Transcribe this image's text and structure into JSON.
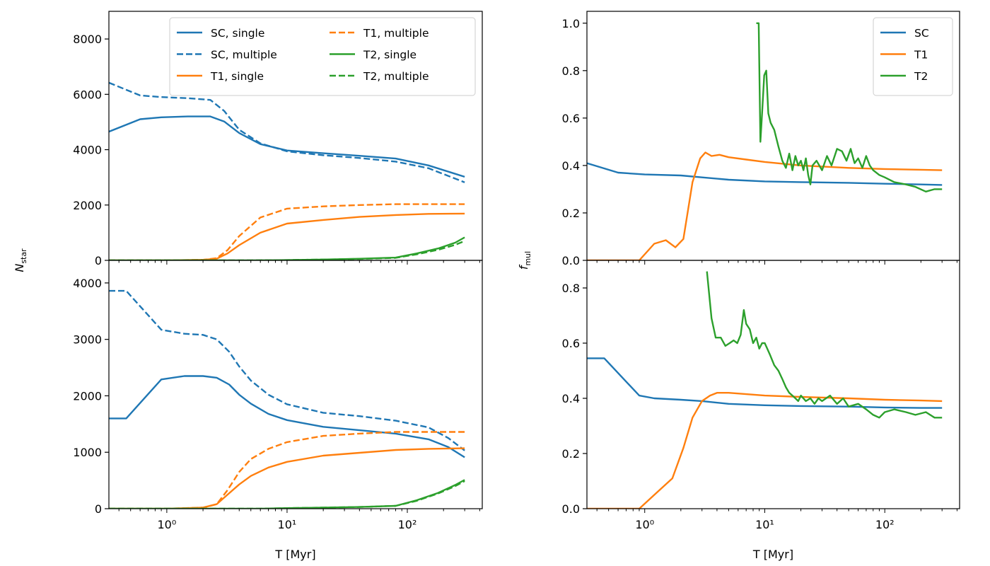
{
  "colors": {
    "SC": "#1f77b4",
    "T1": "#ff7f0e",
    "T2": "#2ca02c",
    "axis": "#000000",
    "legend_border": "#cccccc"
  },
  "ylabels": {
    "left_main": "N",
    "left_sub": "star",
    "right_main": "f",
    "right_sub": "mul"
  },
  "chart_data": [
    {
      "id": "nstar-top",
      "type": "line",
      "xscale": "log",
      "xlim": [
        0.33,
        420
      ],
      "ylim": [
        0,
        9000
      ],
      "yticks": [
        0,
        2000,
        4000,
        6000,
        8000
      ],
      "yticklabels": [
        "0",
        "2000",
        "4000",
        "6000",
        "8000"
      ],
      "xticks": [],
      "xticklabels": [],
      "xlabel": "",
      "legend": {
        "position": "upper-right",
        "columns": 2
      },
      "series": [
        {
          "name": "SC, single",
          "color": "SC",
          "dash": false,
          "x": [
            0.33,
            0.6,
            0.9,
            1.5,
            2.3,
            3.0,
            4.0,
            6.0,
            10,
            20,
            40,
            80,
            150,
            300
          ],
          "y": [
            4650,
            5100,
            5170,
            5200,
            5200,
            5020,
            4600,
            4200,
            3970,
            3870,
            3780,
            3680,
            3430,
            3020
          ]
        },
        {
          "name": "SC, multiple",
          "color": "SC",
          "dash": true,
          "x": [
            0.33,
            0.6,
            0.9,
            1.5,
            2.3,
            3.0,
            4.0,
            6.0,
            10,
            20,
            40,
            80,
            150,
            300
          ],
          "y": [
            6420,
            5960,
            5900,
            5860,
            5800,
            5400,
            4720,
            4230,
            3940,
            3800,
            3700,
            3570,
            3330,
            2820
          ]
        },
        {
          "name": "T1, single",
          "color": "T1",
          "dash": false,
          "x": [
            0.33,
            1.0,
            2.0,
            2.6,
            3.2,
            4.0,
            6.0,
            10,
            20,
            40,
            80,
            150,
            300
          ],
          "y": [
            0,
            0,
            20,
            60,
            250,
            550,
            1000,
            1330,
            1460,
            1570,
            1640,
            1680,
            1690
          ]
        },
        {
          "name": "T1, multiple",
          "color": "T1",
          "dash": true,
          "x": [
            0.33,
            1.0,
            2.0,
            2.6,
            3.2,
            4.0,
            6.0,
            10,
            20,
            40,
            80,
            150,
            300
          ],
          "y": [
            0,
            0,
            20,
            80,
            370,
            880,
            1550,
            1870,
            1950,
            2000,
            2030,
            2030,
            2030
          ]
        },
        {
          "name": "T2, single",
          "color": "T2",
          "dash": false,
          "x": [
            0.33,
            5,
            10,
            20,
            40,
            80,
            120,
            180,
            250,
            300
          ],
          "y": [
            0,
            0,
            10,
            30,
            60,
            100,
            250,
            430,
            640,
            830
          ]
        },
        {
          "name": "T2, multiple",
          "color": "T2",
          "dash": true,
          "x": [
            0.33,
            5,
            10,
            20,
            40,
            80,
            120,
            180,
            250,
            300
          ],
          "y": [
            0,
            0,
            10,
            30,
            50,
            90,
            220,
            380,
            560,
            700
          ]
        }
      ]
    },
    {
      "id": "nstar-bottom",
      "type": "line",
      "xscale": "log",
      "xlim": [
        0.33,
        420
      ],
      "ylim": [
        0,
        4400
      ],
      "yticks": [
        0,
        1000,
        2000,
        3000,
        4000
      ],
      "yticklabels": [
        "0",
        "1000",
        "2000",
        "3000",
        "4000"
      ],
      "xticks": [
        1,
        10,
        100
      ],
      "xticklabels": [
        "10⁰",
        "10¹",
        "10²"
      ],
      "xlabel": "T [Myr]",
      "series": [
        {
          "name": "SC, single",
          "color": "SC",
          "dash": false,
          "x": [
            0.33,
            0.46,
            0.9,
            1.4,
            2.0,
            2.6,
            3.3,
            4.0,
            5.0,
            7.0,
            10,
            20,
            40,
            80,
            150,
            220,
            300
          ],
          "y": [
            1600,
            1600,
            2290,
            2350,
            2350,
            2320,
            2200,
            2020,
            1860,
            1680,
            1570,
            1450,
            1390,
            1330,
            1230,
            1090,
            910
          ]
        },
        {
          "name": "SC, multiple",
          "color": "SC",
          "dash": true,
          "x": [
            0.33,
            0.46,
            0.9,
            1.4,
            2.0,
            2.6,
            3.3,
            4.0,
            5.0,
            7.0,
            10,
            20,
            40,
            80,
            150,
            220,
            300
          ],
          "y": [
            3860,
            3860,
            3170,
            3100,
            3080,
            3000,
            2780,
            2520,
            2270,
            2020,
            1850,
            1700,
            1640,
            1560,
            1440,
            1250,
            1030
          ]
        },
        {
          "name": "T1, single",
          "color": "T1",
          "dash": false,
          "x": [
            0.33,
            1.0,
            2.0,
            2.6,
            3.2,
            4.0,
            5.0,
            7.0,
            10,
            20,
            40,
            80,
            150,
            300
          ],
          "y": [
            0,
            0,
            20,
            80,
            250,
            430,
            580,
            730,
            830,
            940,
            990,
            1040,
            1060,
            1070
          ]
        },
        {
          "name": "T1, multiple",
          "color": "T1",
          "dash": true,
          "x": [
            0.33,
            1.0,
            2.0,
            2.6,
            3.2,
            4.0,
            5.0,
            7.0,
            10,
            20,
            40,
            80,
            150,
            300
          ],
          "y": [
            0,
            0,
            20,
            80,
            330,
            650,
            880,
            1060,
            1180,
            1290,
            1330,
            1360,
            1360,
            1360
          ]
        },
        {
          "name": "T2, single",
          "color": "T2",
          "dash": false,
          "x": [
            0.33,
            6,
            10,
            20,
            40,
            80,
            120,
            180,
            250,
            300
          ],
          "y": [
            0,
            0,
            10,
            20,
            30,
            50,
            150,
            280,
            420,
            510
          ]
        },
        {
          "name": "T2, multiple",
          "color": "T2",
          "dash": true,
          "x": [
            0.33,
            6,
            10,
            20,
            40,
            80,
            120,
            180,
            250,
            300
          ],
          "y": [
            0,
            0,
            10,
            20,
            30,
            50,
            140,
            270,
            400,
            490
          ]
        }
      ]
    },
    {
      "id": "fmul-top",
      "type": "line",
      "xscale": "log",
      "xlim": [
        0.33,
        420
      ],
      "ylim": [
        0,
        1.05
      ],
      "yticks": [
        0,
        0.2,
        0.4,
        0.6,
        0.8,
        1.0
      ],
      "yticklabels": [
        "0.0",
        "0.2",
        "0.4",
        "0.6",
        "0.8",
        "1.0"
      ],
      "xticks": [],
      "xticklabels": [],
      "xlabel": "",
      "legend": {
        "position": "upper-right",
        "columns": 1
      },
      "series": [
        {
          "name": "SC",
          "color": "SC",
          "dash": false,
          "x": [
            0.33,
            0.6,
            1.0,
            2.0,
            3.0,
            5.0,
            10,
            20,
            50,
            100,
            200,
            300
          ],
          "y": [
            0.41,
            0.37,
            0.362,
            0.358,
            0.35,
            0.34,
            0.333,
            0.33,
            0.327,
            0.323,
            0.32,
            0.318
          ]
        },
        {
          "name": "T1",
          "color": "T1",
          "dash": false,
          "x": [
            0.33,
            0.9,
            1.2,
            1.5,
            1.8,
            2.1,
            2.5,
            2.9,
            3.2,
            3.6,
            4.2,
            5.0,
            7.0,
            10,
            20,
            50,
            100,
            200,
            300
          ],
          "y": [
            0,
            0,
            0.07,
            0.085,
            0.055,
            0.09,
            0.33,
            0.43,
            0.455,
            0.44,
            0.445,
            0.435,
            0.425,
            0.415,
            0.4,
            0.39,
            0.385,
            0.382,
            0.38
          ]
        },
        {
          "name": "T2",
          "color": "T2",
          "dash": false,
          "x": [
            8.5,
            8.9,
            9.2,
            9.5,
            9.9,
            10.3,
            10.7,
            11.2,
            12,
            13,
            14,
            15,
            16,
            17,
            18,
            19,
            20,
            21,
            22,
            23,
            24,
            25,
            27,
            30,
            33,
            36,
            40,
            44,
            48,
            52,
            56,
            60,
            65,
            70,
            75,
            80,
            90,
            100,
            120,
            150,
            180,
            220,
            260,
            300
          ],
          "y": [
            1.0,
            1.0,
            0.5,
            0.62,
            0.78,
            0.8,
            0.62,
            0.58,
            0.55,
            0.48,
            0.42,
            0.39,
            0.45,
            0.38,
            0.44,
            0.4,
            0.42,
            0.38,
            0.43,
            0.36,
            0.32,
            0.4,
            0.42,
            0.38,
            0.44,
            0.4,
            0.47,
            0.46,
            0.42,
            0.47,
            0.41,
            0.43,
            0.39,
            0.44,
            0.4,
            0.38,
            0.36,
            0.35,
            0.33,
            0.32,
            0.31,
            0.29,
            0.3,
            0.3
          ]
        }
      ]
    },
    {
      "id": "fmul-bottom",
      "type": "line",
      "xscale": "log",
      "xlim": [
        0.33,
        420
      ],
      "ylim": [
        0,
        0.9
      ],
      "yticks": [
        0,
        0.2,
        0.4,
        0.6,
        0.8
      ],
      "yticklabels": [
        "0.0",
        "0.2",
        "0.4",
        "0.6",
        "0.8"
      ],
      "xticks": [
        1,
        10,
        100
      ],
      "xticklabels": [
        "10⁰",
        "10¹",
        "10²"
      ],
      "xlabel": "T [Myr]",
      "series": [
        {
          "name": "SC",
          "color": "SC",
          "dash": false,
          "x": [
            0.33,
            0.46,
            0.9,
            1.2,
            2.0,
            3.0,
            5.0,
            10,
            20,
            50,
            100,
            200,
            300
          ],
          "y": [
            0.545,
            0.545,
            0.41,
            0.4,
            0.395,
            0.39,
            0.38,
            0.375,
            0.372,
            0.37,
            0.367,
            0.365,
            0.365
          ]
        },
        {
          "name": "T1",
          "color": "T1",
          "dash": false,
          "x": [
            0.33,
            0.9,
            1.2,
            1.7,
            2.1,
            2.5,
            3.0,
            3.5,
            4.0,
            5.0,
            7.0,
            10,
            20,
            50,
            100,
            200,
            300
          ],
          "y": [
            0,
            0,
            0.05,
            0.11,
            0.22,
            0.33,
            0.39,
            0.41,
            0.42,
            0.42,
            0.415,
            0.41,
            0.405,
            0.4,
            0.395,
            0.392,
            0.39
          ]
        },
        {
          "name": "T2",
          "color": "T2",
          "dash": false,
          "x": [
            3.3,
            3.6,
            3.9,
            4.3,
            4.7,
            5.1,
            5.5,
            5.9,
            6.3,
            6.7,
            7.0,
            7.5,
            8.0,
            8.5,
            9.0,
            9.5,
            10,
            11,
            12,
            13,
            14,
            15,
            16,
            17,
            18,
            19,
            20,
            22,
            24,
            26,
            28,
            30,
            35,
            40,
            45,
            50,
            60,
            70,
            80,
            90,
            100,
            120,
            150,
            180,
            220,
            260,
            300
          ],
          "y": [
            0.86,
            0.69,
            0.62,
            0.62,
            0.59,
            0.6,
            0.61,
            0.6,
            0.63,
            0.72,
            0.67,
            0.65,
            0.6,
            0.62,
            0.58,
            0.6,
            0.6,
            0.56,
            0.52,
            0.5,
            0.47,
            0.44,
            0.42,
            0.41,
            0.4,
            0.39,
            0.41,
            0.39,
            0.4,
            0.38,
            0.4,
            0.39,
            0.41,
            0.38,
            0.4,
            0.37,
            0.38,
            0.36,
            0.34,
            0.33,
            0.35,
            0.36,
            0.35,
            0.34,
            0.35,
            0.33,
            0.33
          ]
        }
      ]
    }
  ]
}
